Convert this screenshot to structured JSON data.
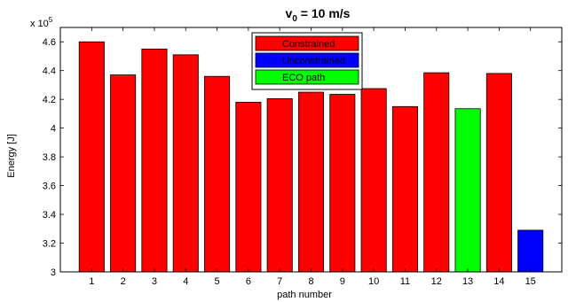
{
  "chart_data": {
    "type": "bar",
    "title_main": "v",
    "title_sub": "0",
    "title_rest": " = 10 m/s",
    "xlabel": "path number",
    "ylabel": "Energy [J]",
    "exponent_base": "x 10",
    "exponent_power": "5",
    "categories": [
      "1",
      "2",
      "3",
      "4",
      "5",
      "6",
      "7",
      "8",
      "9",
      "10",
      "11",
      "12",
      "13",
      "14",
      "15"
    ],
    "values": [
      4.6,
      4.37,
      4.55,
      4.51,
      4.36,
      4.18,
      4.205,
      4.25,
      4.235,
      4.275,
      4.15,
      4.385,
      4.135,
      4.38,
      3.29
    ],
    "bar_series": [
      "Constrained",
      "Constrained",
      "Constrained",
      "Constrained",
      "Constrained",
      "Constrained",
      "Constrained",
      "Constrained",
      "Constrained",
      "Constrained",
      "Constrained",
      "Constrained",
      "ECO path",
      "Constrained",
      "Unconstrained"
    ],
    "yticks": [
      "3",
      "3.2",
      "3.4",
      "3.6",
      "3.8",
      "4",
      "4.2",
      "4.4",
      "4.6"
    ],
    "ylim": [
      3,
      4.7
    ],
    "legend_position": "top-center",
    "series": [
      {
        "name": "Constrained",
        "color": "#ff0000"
      },
      {
        "name": "Unconstrained",
        "color": "#0000ff"
      },
      {
        "name": "ECO path",
        "color": "#00ff00"
      }
    ]
  }
}
